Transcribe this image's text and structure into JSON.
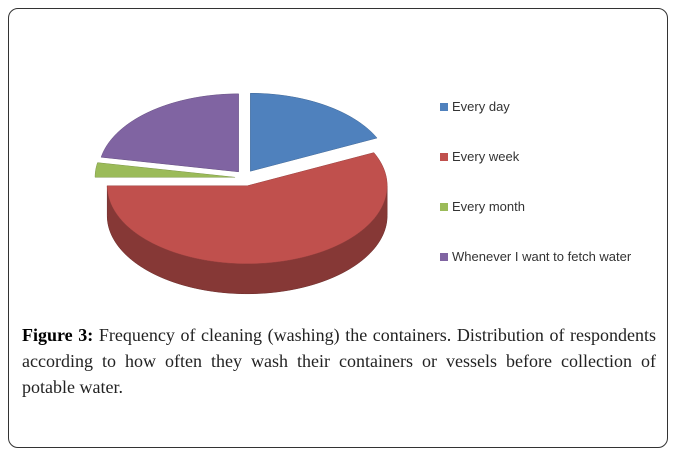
{
  "chart_data": {
    "type": "pie",
    "categories": [
      "Every day",
      "Every week",
      "Every month",
      "Whenever I want to fetch water"
    ],
    "values": [
      18,
      57,
      3,
      22
    ],
    "colors": [
      "#4f81bd",
      "#c0504d",
      "#9bbb59",
      "#8064a2"
    ],
    "legend": "right",
    "caption_label": "Figure 3:",
    "caption": "Frequency of cleaning (washing) the containers. Distribution of respondents according to how often they wash their containers or vessels before collection of potable water."
  }
}
